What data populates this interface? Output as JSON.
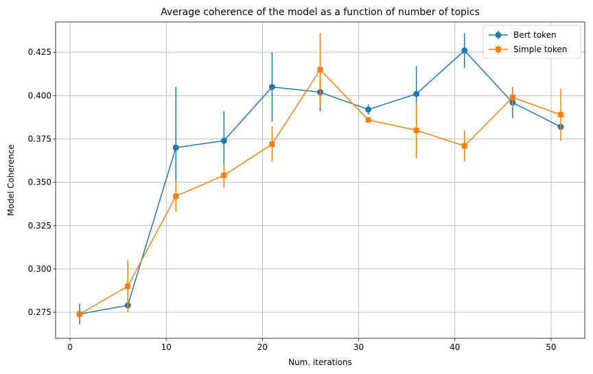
{
  "chart_data": {
    "type": "line",
    "title": "Average coherence of the model as a function of number of topics",
    "xlabel": "Num. iterations",
    "ylabel": "Model Coherence",
    "xlim": [
      -1.5,
      53.5
    ],
    "ylim": [
      0.26,
      0.4425
    ],
    "xticks": [
      0,
      10,
      20,
      30,
      40,
      50
    ],
    "yticks": [
      0.275,
      0.3,
      0.325,
      0.35,
      0.375,
      0.4,
      0.425
    ],
    "xtick_labels": [
      "0",
      "10",
      "20",
      "30",
      "40",
      "50"
    ],
    "ytick_labels": [
      "0.275",
      "0.300",
      "0.325",
      "0.350",
      "0.375",
      "0.400",
      "0.425"
    ],
    "grid": true,
    "legend_position": "top-right",
    "series": [
      {
        "name": "Bert token",
        "color": "#1f77b4",
        "marker": "circle",
        "x": [
          1,
          6,
          11,
          16,
          21,
          26,
          31,
          36,
          41,
          46,
          51
        ],
        "y": [
          0.274,
          0.279,
          0.37,
          0.374,
          0.405,
          0.402,
          0.392,
          0.401,
          0.426,
          0.396,
          0.382
        ],
        "err": [
          0.006,
          0.002,
          0.035,
          0.017,
          0.02,
          0.011,
          0.003,
          0.016,
          0.01,
          0.009,
          0.0
        ]
      },
      {
        "name": "Simple token",
        "color": "#ff7f0e",
        "marker": "square",
        "x": [
          1,
          6,
          11,
          16,
          21,
          26,
          31,
          36,
          41,
          46,
          51
        ],
        "y": [
          0.274,
          0.29,
          0.342,
          0.354,
          0.372,
          0.415,
          0.386,
          0.38,
          0.371,
          0.399,
          0.389
        ],
        "err": [
          0.001,
          0.015,
          0.009,
          0.007,
          0.01,
          0.021,
          0.0,
          0.016,
          0.009,
          0.006,
          0.015
        ]
      }
    ]
  }
}
